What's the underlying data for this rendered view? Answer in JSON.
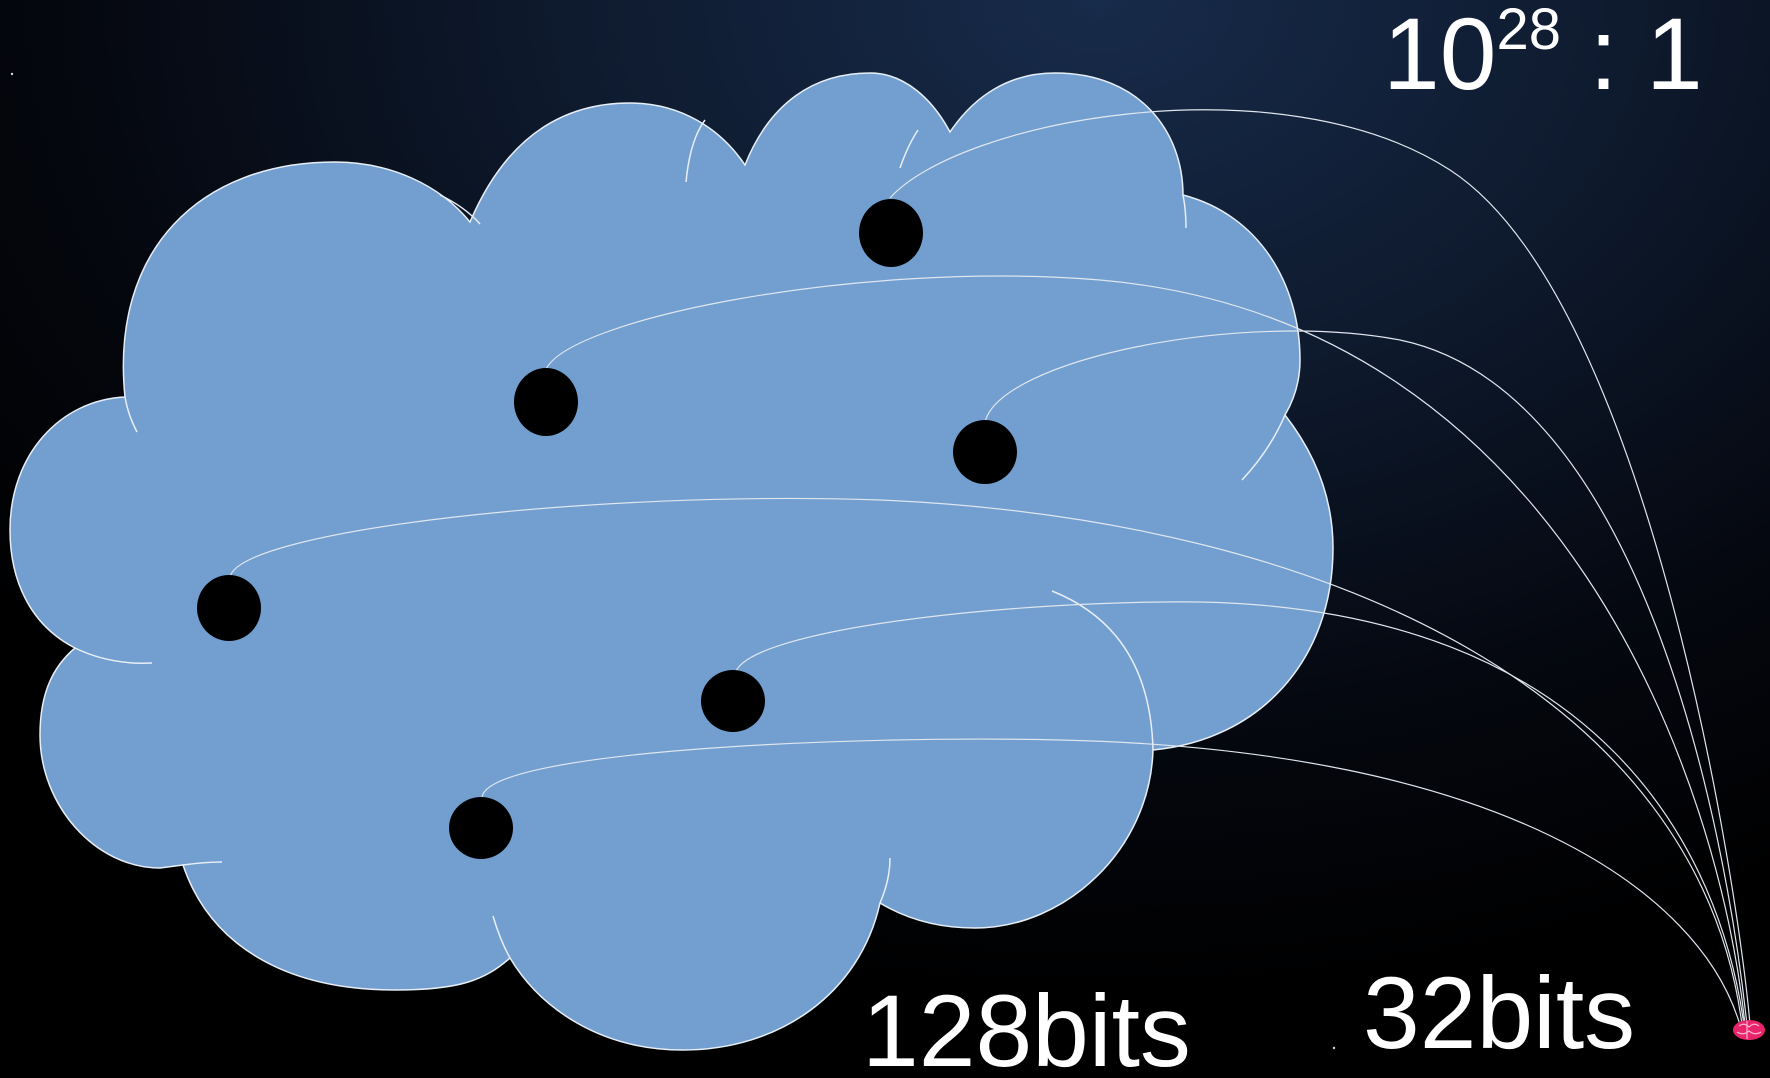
{
  "ratio": {
    "base": "10",
    "exponent": "28",
    "suffix": " : 1"
  },
  "labels": {
    "large_space": "128bits",
    "small_space": "32bits"
  },
  "colors": {
    "cloud_fill": "#729fcf",
    "cloud_stroke": "#e8eef6",
    "point_fill": "#000000",
    "arc_stroke": "#e0e6ee",
    "brain_fill": "#e8246a",
    "text": "#ffffff"
  },
  "icons": {
    "brain": "brain-icon"
  }
}
